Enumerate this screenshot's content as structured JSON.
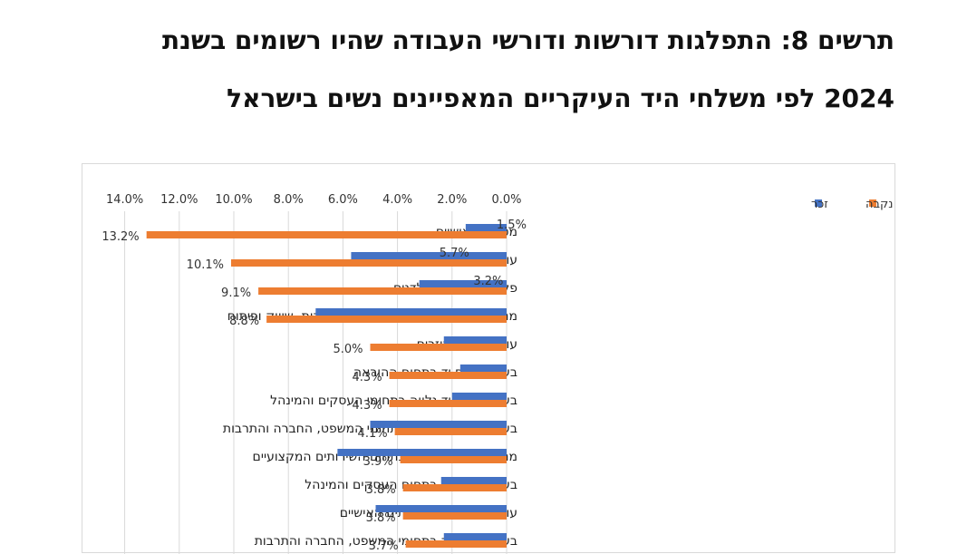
{
  "title": {
    "line1": "תרשים 8: התפלגות דורשות ודורשי העבודה שהיו רשומים בשנת",
    "line2": "2024 לפי משלחי היד העיקריים המאפיינים נשים בישראל"
  },
  "chart_data": {
    "type": "bar",
    "orientation": "horizontal",
    "x_axis_direction": "reversed",
    "x_axis_position": "top",
    "xlim": [
      0,
      14
    ],
    "x_ticks": [
      "0.0%",
      "2.0%",
      "4.0%",
      "6.0%",
      "8.0%",
      "10.0%",
      "12.0%",
      "14.0%"
    ],
    "grid": true,
    "legend_position": "top-right",
    "categories": [
      "מטפלים אישיים",
      "עובדי מכירות",
      "פקידים כלליים וקלדנים",
      "מנהלים אדמיניסטרטיביים ומנהלי מכירות, שיווק ופיתוח",
      "עובדי ניקיון ועוזרים",
      "בעלי משלח יד בתחום ההוראה",
      "בעלי משלח יד נלווה בתחומי העסקים והמינהל",
      "בעלי משלח יד נלווה בתחומי המשפט, החברה והתרבות",
      "מנהלי ייצור ומנהלים בתחום השירותים המקצועיים",
      "בעלי משלח יד בתחום העסקים והמינהל",
      "עובדים בתחום השירותים האישיים",
      "בעלי משלח יד בתחומי המשפט, החברה והתרבות"
    ],
    "series": [
      {
        "name": "זכר",
        "color": "#4472c4",
        "values": [
          1.5,
          5.7,
          3.2,
          7.0,
          2.3,
          1.7,
          2.0,
          5.0,
          6.2,
          2.4,
          4.8,
          2.3
        ],
        "data_labels": [
          1.5,
          5.7,
          3.2,
          null,
          null,
          null,
          null,
          null,
          null,
          null,
          null,
          null
        ]
      },
      {
        "name": "נקבה",
        "color": "#ed7d31",
        "values": [
          13.2,
          10.1,
          9.1,
          8.8,
          5.0,
          4.3,
          4.3,
          4.1,
          3.9,
          3.8,
          3.8,
          3.7
        ],
        "data_labels": [
          13.2,
          10.1,
          9.1,
          8.8,
          5.0,
          4.3,
          4.3,
          4.1,
          3.9,
          3.8,
          3.8,
          3.7
        ]
      }
    ]
  }
}
